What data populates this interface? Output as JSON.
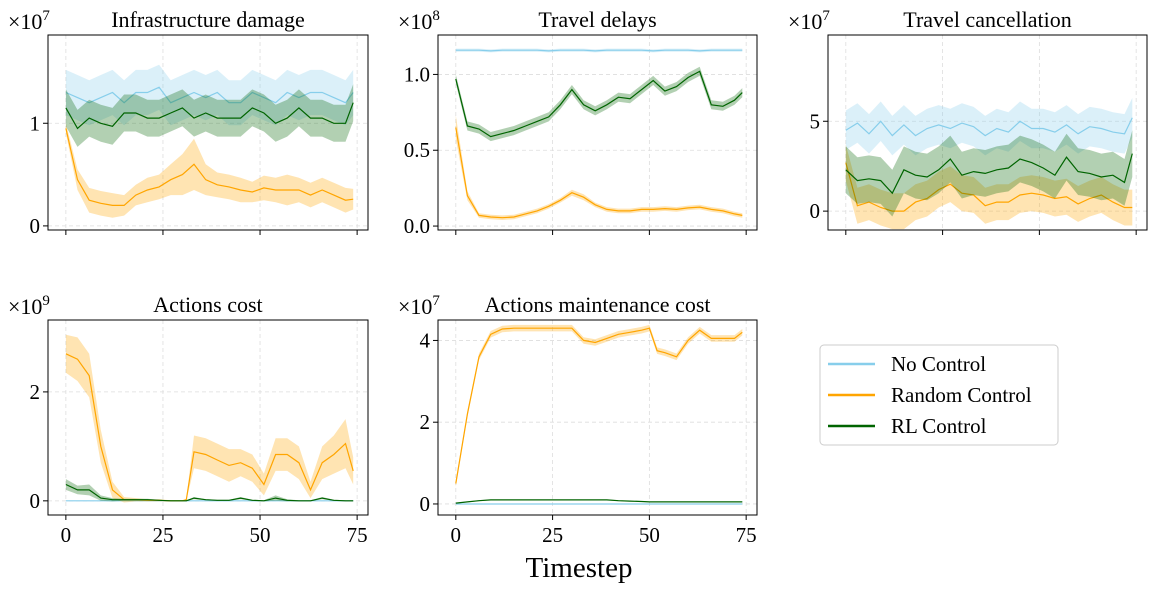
{
  "xlabel": "Timestep",
  "legend": {
    "placement": "right-middle",
    "entries": [
      {
        "name": "No Control",
        "color": "#87CEEB"
      },
      {
        "name": "Random Control",
        "color": "#FFA500"
      },
      {
        "name": "RL Control",
        "color": "#006400"
      }
    ]
  },
  "chart_data": [
    {
      "type": "line",
      "title": "Infrastructure damage",
      "offset_base": "×10",
      "offset_exp": "7",
      "xlim": [
        -4.6,
        77.8
      ],
      "ylim": [
        -0.04,
        1.86
      ],
      "grid": true,
      "x_ticks": [
        0,
        25,
        50,
        75
      ],
      "x_tick_labels": [
        "",
        "",
        "",
        ""
      ],
      "y_ticks": [
        0,
        1
      ],
      "y_tick_labels": [
        "0",
        "1"
      ],
      "x": [
        0,
        3,
        6,
        9,
        12,
        15,
        18,
        21,
        24,
        27,
        30,
        33,
        36,
        39,
        42,
        45,
        48,
        51,
        54,
        57,
        60,
        63,
        66,
        69,
        72,
        74
      ],
      "series": [
        {
          "name": "No Control",
          "mean": [
            1.3,
            1.25,
            1.2,
            1.25,
            1.3,
            1.2,
            1.3,
            1.3,
            1.35,
            1.2,
            1.25,
            1.3,
            1.25,
            1.3,
            1.2,
            1.2,
            1.3,
            1.25,
            1.2,
            1.3,
            1.25,
            1.3,
            1.3,
            1.25,
            1.2,
            1.3
          ],
          "band": 0.22
        },
        {
          "name": "Random Control",
          "mean": [
            0.95,
            0.45,
            0.25,
            0.22,
            0.2,
            0.2,
            0.3,
            0.35,
            0.38,
            0.45,
            0.5,
            0.6,
            0.45,
            0.4,
            0.38,
            0.35,
            0.33,
            0.37,
            0.35,
            0.35,
            0.35,
            0.3,
            0.35,
            0.3,
            0.25,
            0.26
          ],
          "band": [
            0.05,
            0.1,
            0.12,
            0.12,
            0.12,
            0.1,
            0.1,
            0.12,
            0.12,
            0.15,
            0.2,
            0.25,
            0.15,
            0.12,
            0.12,
            0.12,
            0.1,
            0.12,
            0.12,
            0.15,
            0.12,
            0.12,
            0.12,
            0.12,
            0.12,
            0.1
          ]
        },
        {
          "name": "RL Control",
          "mean": [
            1.15,
            0.95,
            1.05,
            1.0,
            0.97,
            1.1,
            1.1,
            1.05,
            1.05,
            1.1,
            1.15,
            1.05,
            1.1,
            1.05,
            1.05,
            1.05,
            1.15,
            1.1,
            1.0,
            1.05,
            1.15,
            1.05,
            1.05,
            1.0,
            1.0,
            1.2
          ],
          "band": 0.18
        }
      ]
    },
    {
      "type": "line",
      "title": "Travel delays",
      "offset_base": "×10",
      "offset_exp": "8",
      "xlim": [
        -4.6,
        77.8
      ],
      "ylim": [
        -0.026,
        1.26
      ],
      "grid": true,
      "x_ticks": [
        0,
        25,
        50,
        75
      ],
      "x_tick_labels": [
        "",
        "",
        "",
        ""
      ],
      "y_ticks": [
        0,
        0.5,
        1.0
      ],
      "y_tick_labels": [
        "0.0",
        "0.5",
        "1.0"
      ],
      "x": [
        0,
        3,
        6,
        9,
        12,
        15,
        18,
        21,
        24,
        27,
        30,
        33,
        36,
        39,
        42,
        45,
        48,
        51,
        54,
        57,
        60,
        63,
        66,
        69,
        72,
        74
      ],
      "series": [
        {
          "name": "No Control",
          "mean": [
            1.16,
            1.16,
            1.16,
            1.155,
            1.16,
            1.16,
            1.16,
            1.16,
            1.155,
            1.16,
            1.16,
            1.16,
            1.155,
            1.16,
            1.16,
            1.16,
            1.16,
            1.155,
            1.16,
            1.16,
            1.16,
            1.155,
            1.16,
            1.16,
            1.16,
            1.16
          ],
          "band": 0.01
        },
        {
          "name": "Random Control",
          "mean": [
            0.65,
            0.2,
            0.07,
            0.06,
            0.055,
            0.06,
            0.08,
            0.1,
            0.13,
            0.17,
            0.22,
            0.19,
            0.14,
            0.11,
            0.1,
            0.1,
            0.11,
            0.11,
            0.115,
            0.11,
            0.12,
            0.125,
            0.11,
            0.1,
            0.08,
            0.07
          ],
          "band": [
            0.08,
            0.03,
            0.015,
            0.015,
            0.015,
            0.015,
            0.015,
            0.015,
            0.015,
            0.015,
            0.02,
            0.02,
            0.015,
            0.015,
            0.015,
            0.015,
            0.015,
            0.015,
            0.015,
            0.015,
            0.015,
            0.015,
            0.015,
            0.015,
            0.015,
            0.015
          ]
        },
        {
          "name": "RL Control",
          "mean": [
            0.97,
            0.66,
            0.64,
            0.59,
            0.61,
            0.63,
            0.66,
            0.69,
            0.72,
            0.8,
            0.9,
            0.8,
            0.76,
            0.8,
            0.85,
            0.84,
            0.9,
            0.96,
            0.89,
            0.92,
            0.98,
            1.02,
            0.8,
            0.79,
            0.83,
            0.88
          ],
          "band": 0.03
        }
      ]
    },
    {
      "type": "line",
      "title": "Travel cancellation",
      "offset_base": "×10",
      "offset_exp": "7",
      "xlim": [
        -4.6,
        77.8
      ],
      "ylim": [
        -1.05,
        9.8
      ],
      "grid": true,
      "x_ticks": [
        0,
        25,
        50,
        75
      ],
      "x_tick_labels": [
        "",
        "",
        "",
        ""
      ],
      "y_ticks": [
        0,
        5
      ],
      "y_tick_labels": [
        "0",
        "5"
      ],
      "x": [
        0,
        3,
        6,
        9,
        12,
        15,
        18,
        21,
        24,
        27,
        30,
        33,
        36,
        39,
        42,
        45,
        48,
        51,
        54,
        57,
        60,
        63,
        66,
        69,
        72,
        74
      ],
      "series": [
        {
          "name": "No Control",
          "mean": [
            4.5,
            4.9,
            4.3,
            5.0,
            4.2,
            4.8,
            4.2,
            4.6,
            4.8,
            4.6,
            4.9,
            4.7,
            4.2,
            4.6,
            4.4,
            5.0,
            4.6,
            4.6,
            4.4,
            4.8,
            4.3,
            4.7,
            4.6,
            4.4,
            4.3,
            5.2
          ],
          "band": 1.1
        },
        {
          "name": "Random Control",
          "mean": [
            2.7,
            0.3,
            0.5,
            0.2,
            0.0,
            0.0,
            0.5,
            0.7,
            1.2,
            1.5,
            1.0,
            0.9,
            0.3,
            0.5,
            0.5,
            0.9,
            1.0,
            0.9,
            0.7,
            0.8,
            0.4,
            0.7,
            0.9,
            0.5,
            0.2,
            0.2
          ],
          "band": 1.0
        },
        {
          "name": "RL Control",
          "mean": [
            2.3,
            1.7,
            1.8,
            1.7,
            1.0,
            2.3,
            2.0,
            1.9,
            2.3,
            2.9,
            2.0,
            2.2,
            2.1,
            2.3,
            2.4,
            2.9,
            2.7,
            2.4,
            2.0,
            3.0,
            2.2,
            2.1,
            1.9,
            2.0,
            1.6,
            3.2
          ],
          "band": 1.3
        }
      ]
    },
    {
      "type": "line",
      "title": "Actions cost",
      "offset_base": "×10",
      "offset_exp": "9",
      "xlim": [
        -4.6,
        77.8
      ],
      "ylim": [
        -0.26,
        3.32
      ],
      "grid": true,
      "x_ticks": [
        0,
        25,
        50,
        75
      ],
      "x_tick_labels": [
        "0",
        "25",
        "50",
        "75"
      ],
      "y_ticks": [
        0,
        2
      ],
      "y_tick_labels": [
        "0",
        "2"
      ],
      "x": [
        0,
        3,
        6,
        9,
        12,
        15,
        18,
        21,
        24,
        27,
        30,
        31,
        33,
        36,
        39,
        42,
        45,
        48,
        51,
        54,
        57,
        60,
        63,
        66,
        69,
        72,
        74
      ],
      "series": [
        {
          "name": "No Control",
          "mean": [
            0,
            0,
            0,
            0,
            0,
            0,
            0,
            0,
            0,
            0,
            0,
            0,
            0,
            0,
            0,
            0,
            0,
            0,
            0,
            0,
            0,
            0,
            0,
            0,
            0,
            0,
            0
          ],
          "band": 0
        },
        {
          "name": "Random Control",
          "mean": [
            2.7,
            2.6,
            2.3,
            1.0,
            0.2,
            0.02,
            0.02,
            0.01,
            0.01,
            0.0,
            0.0,
            0.02,
            0.9,
            0.85,
            0.75,
            0.65,
            0.7,
            0.6,
            0.3,
            0.85,
            0.85,
            0.7,
            0.2,
            0.7,
            0.85,
            1.05,
            0.55
          ],
          "band": [
            0.35,
            0.4,
            0.4,
            0.3,
            0.15,
            0.05,
            0.03,
            0.02,
            0.02,
            0.01,
            0.01,
            0.02,
            0.3,
            0.3,
            0.3,
            0.3,
            0.25,
            0.25,
            0.2,
            0.3,
            0.3,
            0.3,
            0.15,
            0.3,
            0.35,
            0.45,
            0.25
          ]
        },
        {
          "name": "RL Control",
          "mean": [
            0.3,
            0.2,
            0.2,
            0.05,
            0.02,
            0.02,
            0.02,
            0.02,
            0.01,
            0.0,
            0.0,
            0.0,
            0.05,
            0.02,
            0.01,
            0.01,
            0.05,
            0.01,
            0.0,
            0.05,
            0.01,
            0.0,
            0.0,
            0.05,
            0.01,
            0.0,
            0.0
          ],
          "band": [
            0.1,
            0.08,
            0.1,
            0.05,
            0.03,
            0.02,
            0.02,
            0.02,
            0.01,
            0.01,
            0.01,
            0.01,
            0.02,
            0.01,
            0.01,
            0.01,
            0.02,
            0.01,
            0.01,
            0.05,
            0.02,
            0.01,
            0.01,
            0.02,
            0.01,
            0.01,
            0.01
          ]
        }
      ]
    },
    {
      "type": "line",
      "title": "Actions maintenance cost",
      "offset_base": "×10",
      "offset_exp": "7",
      "xlim": [
        -4.6,
        77.8
      ],
      "ylim": [
        -0.27,
        4.5
      ],
      "grid": true,
      "x_ticks": [
        0,
        25,
        50,
        75
      ],
      "x_tick_labels": [
        "0",
        "25",
        "50",
        "75"
      ],
      "y_ticks": [
        0,
        2,
        4
      ],
      "y_tick_labels": [
        "0",
        "2",
        "4"
      ],
      "x": [
        0,
        3,
        6,
        9,
        12,
        15,
        18,
        21,
        24,
        27,
        30,
        33,
        36,
        39,
        42,
        45,
        48,
        50,
        52,
        54,
        57,
        60,
        63,
        66,
        69,
        72,
        74
      ],
      "series": [
        {
          "name": "No Control",
          "mean": [
            0,
            0,
            0,
            0,
            0,
            0,
            0,
            0,
            0,
            0,
            0,
            0,
            0,
            0,
            0,
            0,
            0,
            0,
            0,
            0,
            0,
            0,
            0,
            0,
            0,
            0,
            0
          ],
          "band": 0
        },
        {
          "name": "Random Control",
          "mean": [
            0.5,
            2.2,
            3.6,
            4.15,
            4.28,
            4.3,
            4.3,
            4.3,
            4.3,
            4.3,
            4.3,
            4.0,
            3.95,
            4.05,
            4.15,
            4.2,
            4.25,
            4.3,
            3.75,
            3.7,
            3.6,
            4.0,
            4.25,
            4.05,
            4.05,
            4.05,
            4.2
          ],
          "band": 0.08
        },
        {
          "name": "RL Control",
          "mean": [
            0.02,
            0.05,
            0.08,
            0.1,
            0.1,
            0.1,
            0.1,
            0.1,
            0.1,
            0.1,
            0.1,
            0.1,
            0.1,
            0.1,
            0.08,
            0.07,
            0.06,
            0.05,
            0.05,
            0.05,
            0.05,
            0.05,
            0.05,
            0.05,
            0.05,
            0.05,
            0.05
          ],
          "band": 0.01
        }
      ]
    }
  ]
}
